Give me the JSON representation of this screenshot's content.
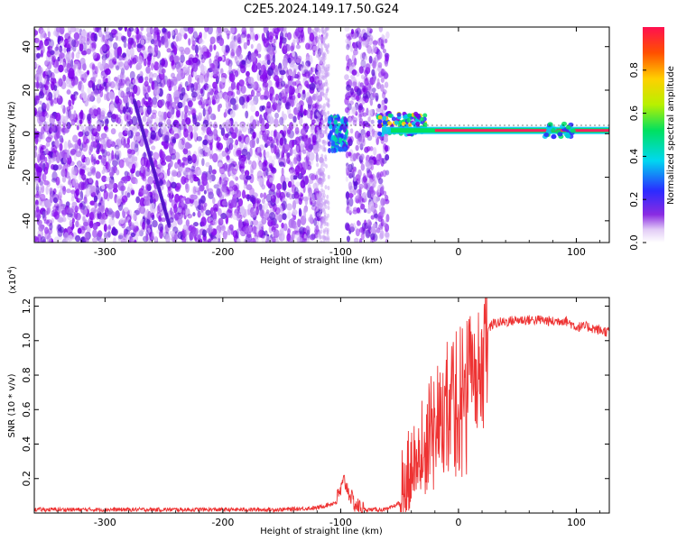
{
  "title": "C2E5.2024.149.17.50.G24",
  "chart_data": [
    {
      "type": "heatmap",
      "name": "spectrogram",
      "xlabel": "Height of straight line (km)",
      "ylabel": "Frequency (Hz)",
      "xlim": [
        -360,
        128
      ],
      "ylim": [
        -50,
        49
      ],
      "xticks": [
        -300,
        -200,
        -100,
        0,
        100
      ],
      "yticks": [
        -40,
        -20,
        0,
        20,
        40
      ],
      "colorbar": {
        "label": "Normalized spectral amplitude",
        "range": [
          0,
          1
        ],
        "ticks": [
          "0.0",
          "0.2",
          "0.4",
          "0.6",
          "0.8"
        ]
      },
      "features": {
        "noise_region_km": [
          -360,
          -115
        ],
        "gap_km": [
          -100,
          -95
        ],
        "noise_region2_km": [
          -95,
          -60
        ],
        "signal_cluster_km": [
          -110,
          -95
        ],
        "carrier_start_km": -65,
        "carrier_frequency_hz": 1.5
      }
    },
    {
      "type": "line",
      "name": "snr",
      "xlabel": "Height of straight line (km)",
      "ylabel": "SNR (10 * v/v)",
      "scale_label": "(x10",
      "scale_exp": "4",
      "scale_close": ")",
      "xlim": [
        -360,
        128
      ],
      "ylim": [
        0,
        1.25
      ],
      "xticks": [
        -300,
        -200,
        -100,
        0,
        100
      ],
      "yticks": [
        "0.2",
        "0.4",
        "0.6",
        "0.8",
        "1.0",
        "1.2"
      ],
      "color": "#ee3333",
      "series": [
        {
          "name": "SNR",
          "x": [
            -360,
            -300,
            -250,
            -200,
            -150,
            -120,
            -105,
            -100,
            -97,
            -93,
            -88,
            -80,
            -70,
            -60,
            -50,
            -45,
            -40,
            -35,
            -30,
            -25,
            -20,
            -15,
            -10,
            -5,
            0,
            5,
            10,
            15,
            20,
            25,
            30,
            40,
            50,
            60,
            70,
            80,
            90,
            100,
            110,
            120,
            128
          ],
          "y": [
            0.02,
            0.02,
            0.02,
            0.02,
            0.02,
            0.03,
            0.06,
            0.13,
            0.19,
            0.12,
            0.05,
            0.02,
            0.02,
            0.02,
            0.06,
            0.15,
            0.3,
            0.38,
            0.45,
            0.55,
            0.65,
            0.55,
            0.72,
            0.78,
            0.8,
            0.82,
            0.88,
            0.92,
            1.02,
            1.07,
            1.1,
            1.11,
            1.12,
            1.12,
            1.12,
            1.11,
            1.12,
            1.08,
            1.08,
            1.06,
            1.05
          ]
        }
      ]
    }
  ]
}
